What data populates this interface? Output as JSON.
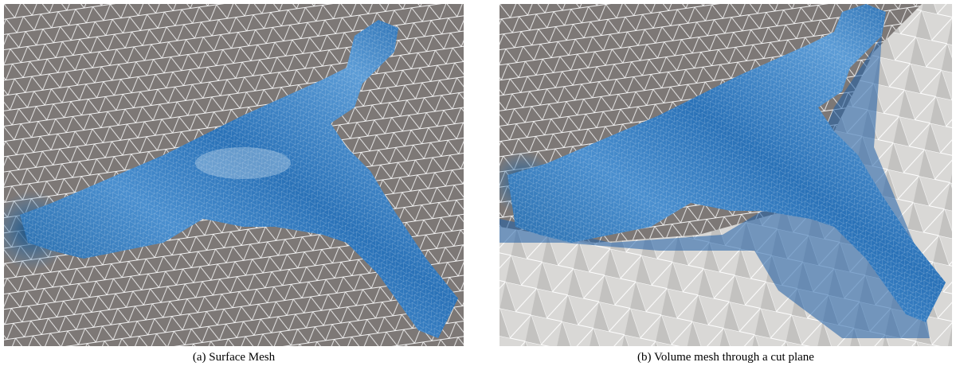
{
  "figures": [
    {
      "caption": "(a) Surface Mesh"
    },
    {
      "caption": "(b) Volume mesh through a cut plane"
    }
  ]
}
